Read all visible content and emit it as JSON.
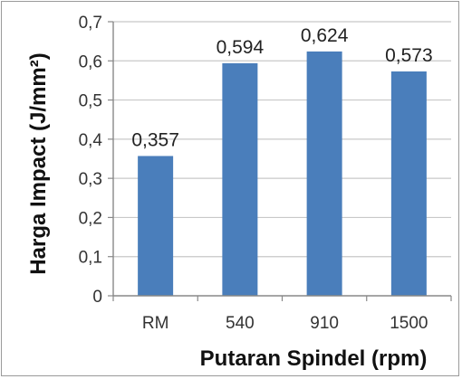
{
  "chart_data": {
    "type": "bar",
    "categories": [
      "RM",
      "540",
      "910",
      "1500"
    ],
    "values": [
      0.357,
      0.594,
      0.624,
      0.573
    ],
    "data_labels": [
      "0,357",
      "0,594",
      "0,624",
      "0,573"
    ],
    "y_ticks": [
      "0",
      "0,1",
      "0,2",
      "0,3",
      "0,4",
      "0,5",
      "0,6",
      "0,7"
    ],
    "ylim": [
      0,
      0.7
    ],
    "xlabel": "Putaran Spindel (rpm)",
    "ylabel": "Harga Impact  (J/mm²)",
    "grid": true,
    "bar_color": "#4a7ebb",
    "grid_color": "#c8c8c8"
  }
}
